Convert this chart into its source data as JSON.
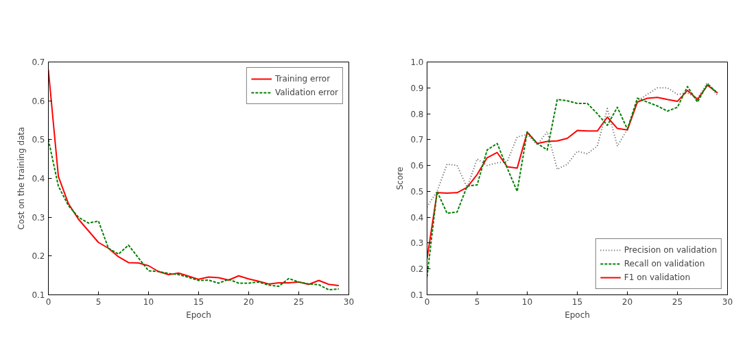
{
  "chart_data": [
    {
      "type": "line",
      "xlabel": "Epoch",
      "ylabel": "Cost on the training data",
      "x": [
        0,
        1,
        2,
        3,
        4,
        5,
        6,
        7,
        8,
        9,
        10,
        11,
        12,
        13,
        14,
        15,
        16,
        17,
        18,
        19,
        20,
        21,
        22,
        23,
        24,
        25,
        26,
        27,
        28,
        29
      ],
      "xlim": [
        0,
        30
      ],
      "xticks": [
        0,
        5,
        10,
        15,
        20,
        25,
        30
      ],
      "ylim": [
        0.1,
        0.7
      ],
      "yticks": [
        0.1,
        0.2,
        0.3,
        0.4,
        0.5,
        0.6,
        0.7
      ],
      "grid": false,
      "legend": "top right",
      "series": [
        {
          "name": "Training error",
          "color": "#ff0000",
          "line_style": "solid",
          "values": [
            0.68,
            0.405,
            0.335,
            0.295,
            0.265,
            0.235,
            0.22,
            0.198,
            0.183,
            0.182,
            0.175,
            0.16,
            0.152,
            0.156,
            0.148,
            0.14,
            0.146,
            0.144,
            0.138,
            0.149,
            0.141,
            0.135,
            0.128,
            0.131,
            0.131,
            0.133,
            0.127,
            0.137,
            0.127,
            0.124
          ]
        },
        {
          "name": "Validation error",
          "color": "#008000",
          "line_style": "dashed",
          "values": [
            0.5,
            0.38,
            0.33,
            0.3,
            0.285,
            0.29,
            0.22,
            0.205,
            0.228,
            0.195,
            0.162,
            0.16,
            0.155,
            0.152,
            0.145,
            0.137,
            0.138,
            0.13,
            0.14,
            0.13,
            0.13,
            0.133,
            0.125,
            0.122,
            0.142,
            0.133,
            0.128,
            0.126,
            0.113,
            0.115
          ]
        }
      ]
    },
    {
      "type": "line",
      "xlabel": "Epoch",
      "ylabel": "Score",
      "x": [
        0,
        1,
        2,
        3,
        4,
        5,
        6,
        7,
        8,
        9,
        10,
        11,
        12,
        13,
        14,
        15,
        16,
        17,
        18,
        19,
        20,
        21,
        22,
        23,
        24,
        25,
        26,
        27,
        28,
        29
      ],
      "xlim": [
        0,
        30
      ],
      "xticks": [
        0,
        5,
        10,
        15,
        20,
        25,
        30
      ],
      "ylim": [
        0.1,
        1.0
      ],
      "yticks": [
        0.1,
        0.2,
        0.3,
        0.4,
        0.5,
        0.6,
        0.7,
        0.8,
        0.9,
        {
          "value": 1.0,
          "label": "1.0"
        }
      ],
      "grid": false,
      "legend": "bottom right",
      "series": [
        {
          "name": "Precision on validation",
          "color": "#555555",
          "line_style": "dotted",
          "values": [
            0.44,
            0.5,
            0.605,
            0.6,
            0.515,
            0.625,
            0.6,
            0.61,
            0.615,
            0.71,
            0.72,
            0.68,
            0.73,
            0.585,
            0.605,
            0.655,
            0.645,
            0.675,
            0.82,
            0.675,
            0.74,
            0.85,
            0.875,
            0.9,
            0.9,
            0.875,
            0.88,
            0.86,
            0.92,
            0.87
          ]
        },
        {
          "name": "Recall on validation",
          "color": "#008000",
          "line_style": "dashed",
          "values": [
            0.17,
            0.5,
            0.415,
            0.42,
            0.52,
            0.525,
            0.66,
            0.685,
            0.59,
            0.5,
            0.73,
            0.685,
            0.66,
            0.855,
            0.85,
            0.84,
            0.84,
            0.8,
            0.755,
            0.825,
            0.74,
            0.86,
            0.845,
            0.83,
            0.81,
            0.825,
            0.905,
            0.845,
            0.915,
            0.88
          ]
        },
        {
          "name": "F1 on validation",
          "color": "#ff0000",
          "line_style": "solid",
          "values": [
            0.24,
            0.495,
            0.493,
            0.495,
            0.515,
            0.565,
            0.63,
            0.65,
            0.595,
            0.59,
            0.728,
            0.685,
            0.693,
            0.695,
            0.705,
            0.735,
            0.733,
            0.733,
            0.787,
            0.743,
            0.737,
            0.845,
            0.86,
            0.863,
            0.855,
            0.848,
            0.89,
            0.855,
            0.91,
            0.88
          ]
        }
      ]
    }
  ]
}
